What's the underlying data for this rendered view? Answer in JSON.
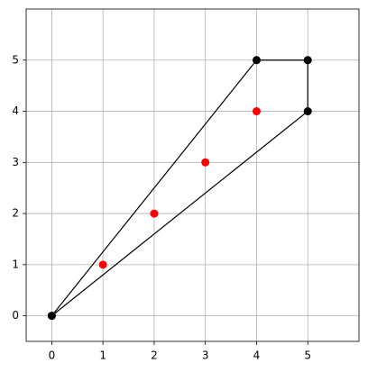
{
  "chart_data": {
    "type": "scatter",
    "xlim": [
      -0.5,
      6
    ],
    "ylim": [
      -0.5,
      6
    ],
    "xticks": [
      0,
      1,
      2,
      3,
      4,
      5
    ],
    "yticks": [
      0,
      1,
      2,
      3,
      4,
      5
    ],
    "grid": true,
    "series": [
      {
        "color": "#000000",
        "line": true,
        "x": [
          0,
          5,
          5,
          4,
          0
        ],
        "values": [
          0,
          4,
          5,
          5,
          0
        ]
      },
      {
        "color": "#ff0000",
        "line": false,
        "x": [
          1,
          2,
          3,
          4
        ],
        "values": [
          1,
          2,
          3,
          4
        ]
      }
    ]
  }
}
